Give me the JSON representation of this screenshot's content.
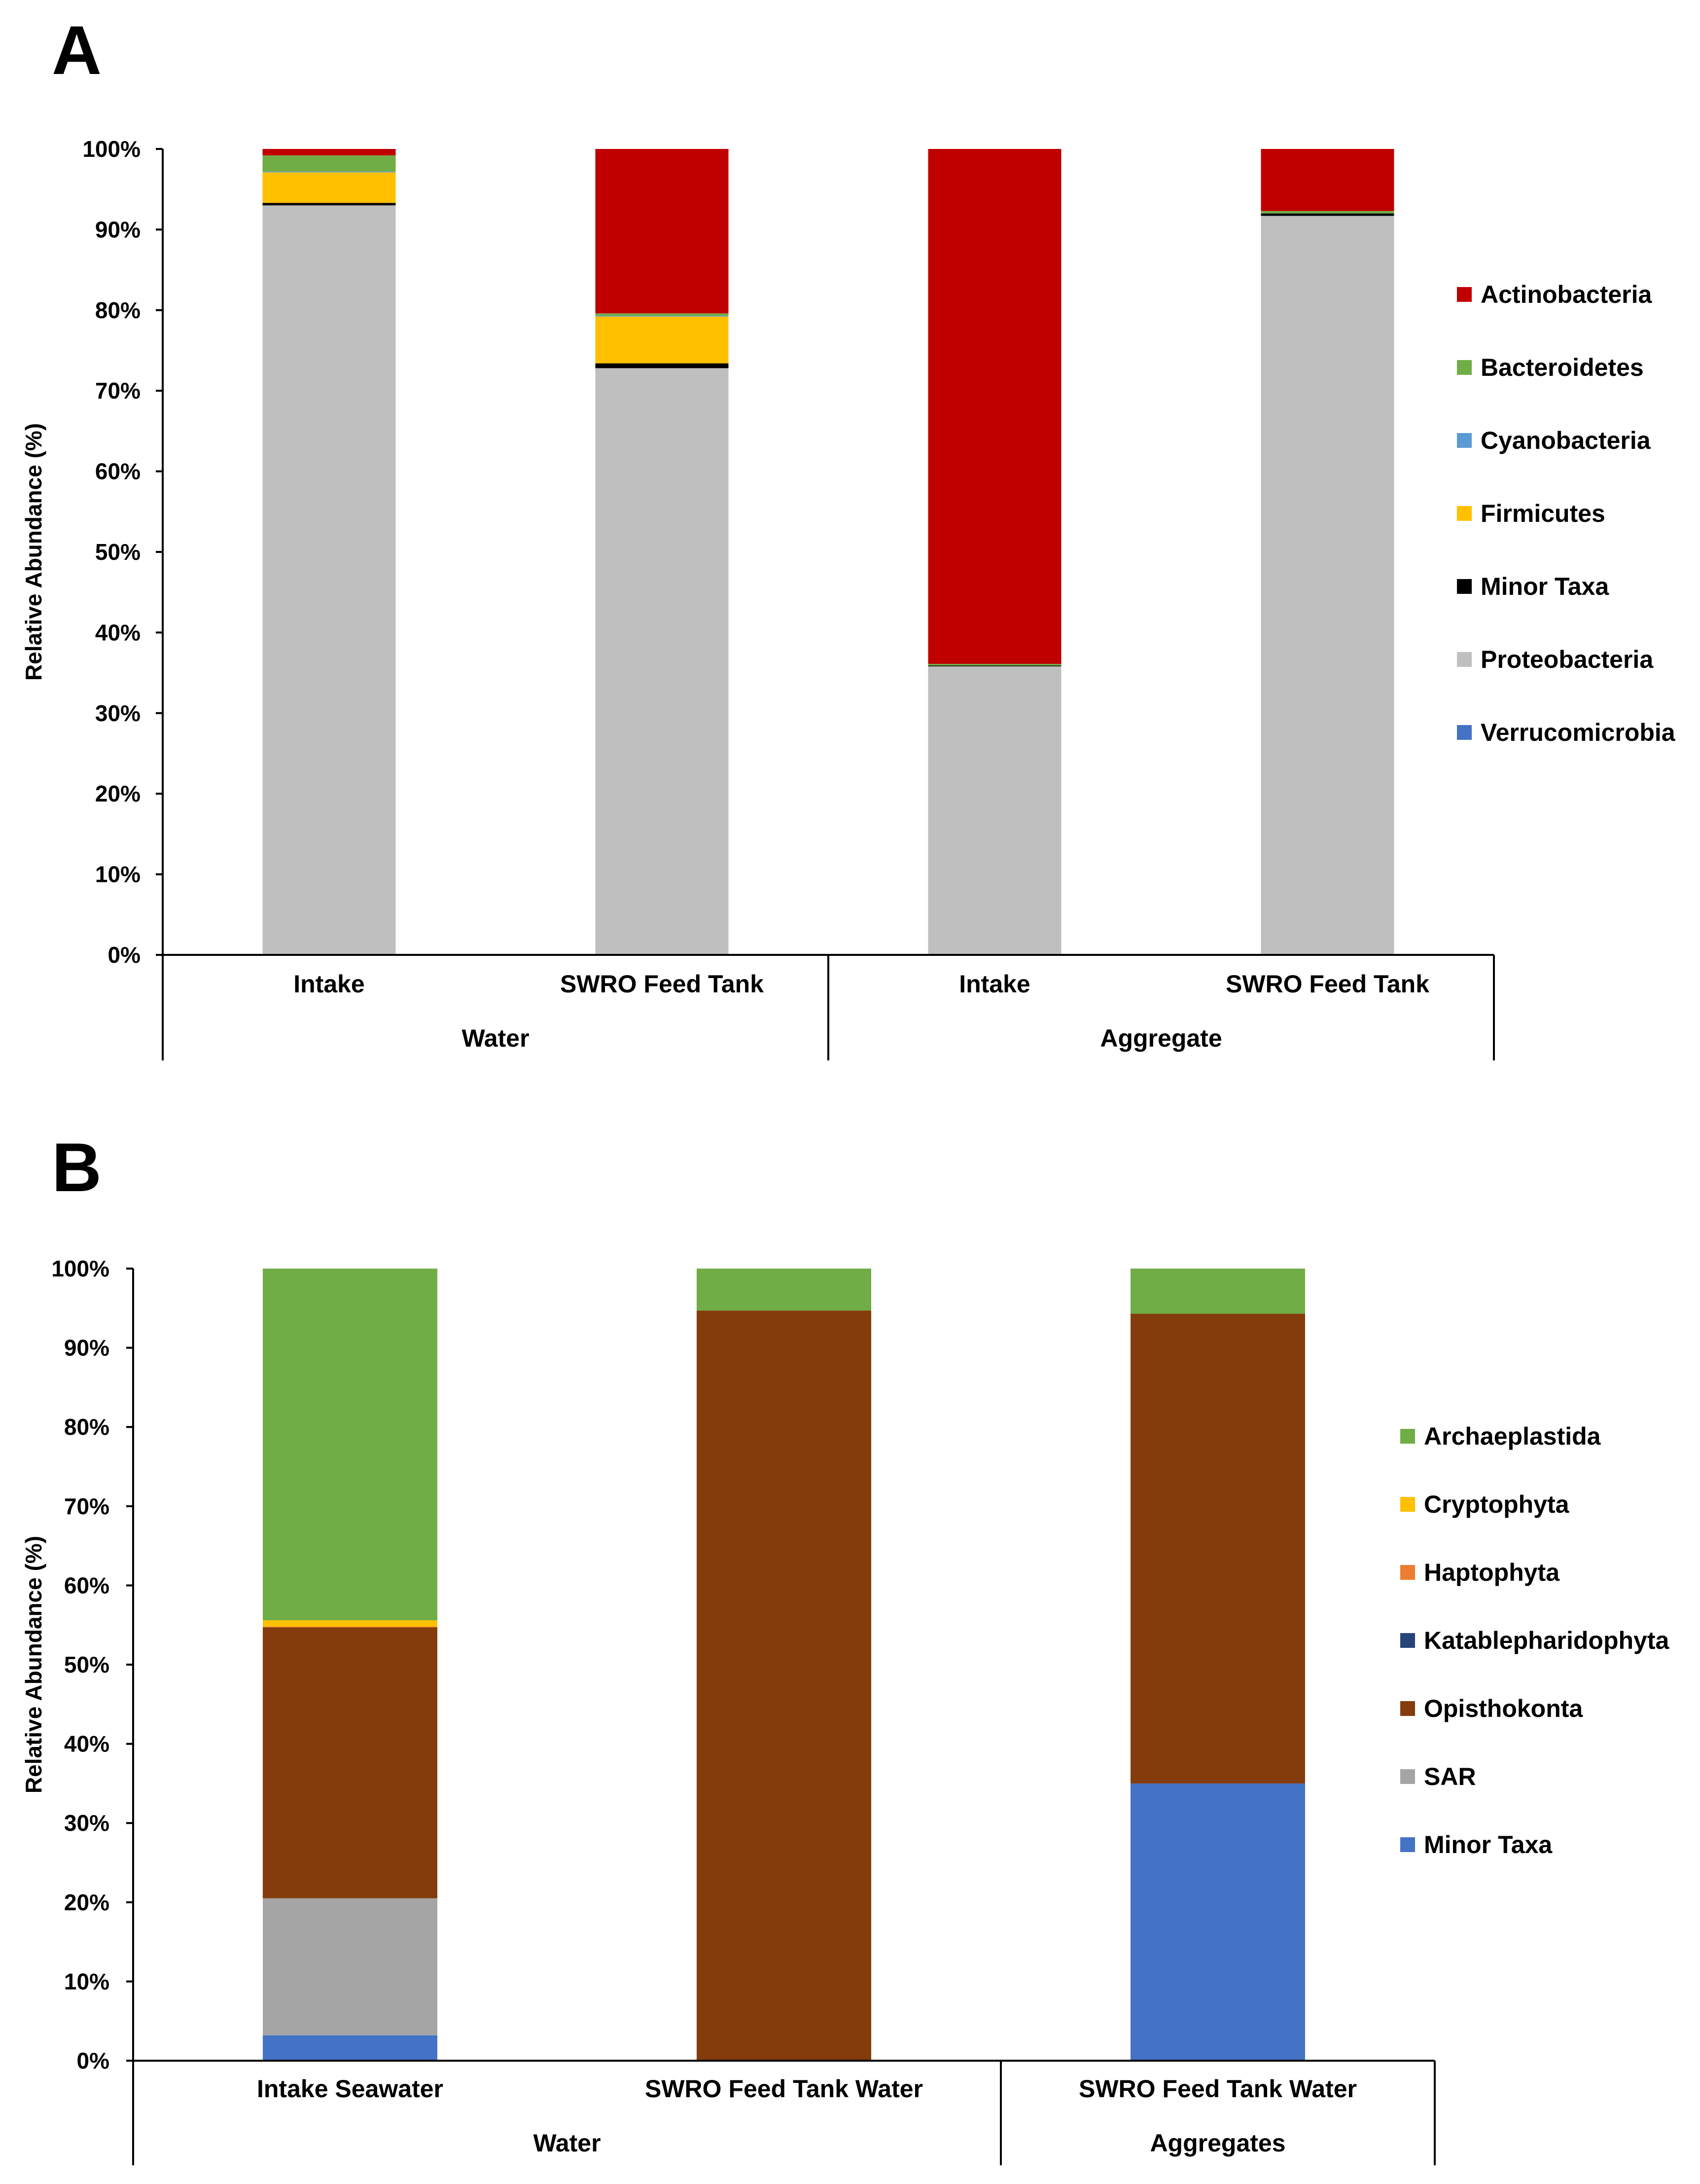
{
  "chart_data": [
    {
      "panel": "A",
      "type": "bar",
      "stacked": true,
      "normalized": true,
      "ylabel": "Relative Abundance (%)",
      "ylim": [
        0,
        100
      ],
      "yticks": [
        "0%",
        "10%",
        "20%",
        "30%",
        "40%",
        "50%",
        "60%",
        "70%",
        "80%",
        "90%",
        "100%"
      ],
      "categories": [
        "Intake",
        "SWRO Feed Tank",
        "Intake",
        "SWRO Feed Tank"
      ],
      "groups": [
        {
          "label": "Water",
          "span": [
            0,
            1
          ]
        },
        {
          "label": "Aggregate",
          "span": [
            2,
            3
          ]
        }
      ],
      "series": [
        {
          "name": "Verrucomicrobia",
          "color": "#4472C4",
          "values": [
            0,
            0,
            0,
            0
          ]
        },
        {
          "name": "Proteobacteria",
          "color": "#BFBFBF",
          "values": [
            93.0,
            72.8,
            35.8,
            91.7
          ]
        },
        {
          "name": "Minor Taxa",
          "color": "#000000",
          "values": [
            0.3,
            0.6,
            0.1,
            0.3
          ]
        },
        {
          "name": "Firmicutes",
          "color": "#FFC000",
          "values": [
            3.8,
            5.8,
            0,
            0
          ]
        },
        {
          "name": "Cyanobacteria",
          "color": "#5B9BD5",
          "values": [
            0.1,
            0.1,
            0,
            0
          ]
        },
        {
          "name": "Bacteroidetes",
          "color": "#70AD47",
          "values": [
            2.0,
            0.3,
            0.2,
            0.3
          ]
        },
        {
          "name": "Actinobacteria",
          "color": "#C00000",
          "values": [
            0.8,
            20.4,
            63.9,
            7.7
          ]
        }
      ],
      "legend": {
        "placement": "right",
        "entries": [
          {
            "name": "Actinobacteria",
            "color": "#C00000"
          },
          {
            "name": "Bacteroidetes",
            "color": "#70AD47"
          },
          {
            "name": "Cyanobacteria",
            "color": "#5B9BD5"
          },
          {
            "name": "Firmicutes",
            "color": "#FFC000"
          },
          {
            "name": "Minor Taxa",
            "color": "#000000"
          },
          {
            "name": "Proteobacteria",
            "color": "#BFBFBF"
          },
          {
            "name": "Verrucomicrobia",
            "color": "#4472C4"
          }
        ]
      },
      "grid": false
    },
    {
      "panel": "B",
      "type": "bar",
      "stacked": true,
      "normalized": true,
      "ylabel": "Relative Abundance (%)",
      "ylim": [
        0,
        100
      ],
      "yticks": [
        "0%",
        "10%",
        "20%",
        "30%",
        "40%",
        "50%",
        "60%",
        "70%",
        "80%",
        "90%",
        "100%"
      ],
      "categories": [
        "Intake Seawater",
        "SWRO Feed Tank Water",
        "SWRO Feed Tank Water"
      ],
      "groups": [
        {
          "label": "Water",
          "span": [
            0,
            1
          ]
        },
        {
          "label": "Aggregates",
          "span": [
            2,
            2
          ]
        }
      ],
      "series": [
        {
          "name": "Minor Taxa",
          "color": "#4472C4",
          "values": [
            3.2,
            0,
            35.0
          ]
        },
        {
          "name": "SAR",
          "color": "#A5A5A5",
          "values": [
            17.3,
            0,
            0
          ]
        },
        {
          "name": "Opisthokonta",
          "color": "#843C0C",
          "values": [
            34.2,
            94.7,
            59.3
          ]
        },
        {
          "name": "Katablepharidophyta",
          "color": "#264478",
          "values": [
            0,
            0,
            0
          ]
        },
        {
          "name": "Haptophyta",
          "color": "#ED7D31",
          "values": [
            0.1,
            0,
            0
          ]
        },
        {
          "name": "Cryptophyta",
          "color": "#FFC000",
          "values": [
            0.8,
            0,
            0
          ]
        },
        {
          "name": "Archaeplastida",
          "color": "#70AD47",
          "values": [
            44.4,
            5.3,
            5.7
          ]
        }
      ],
      "legend": {
        "placement": "right",
        "entries": [
          {
            "name": "Archaeplastida",
            "color": "#70AD47"
          },
          {
            "name": "Cryptophyta",
            "color": "#FFC000"
          },
          {
            "name": "Haptophyta",
            "color": "#ED7D31"
          },
          {
            "name": "Katablepharidophyta",
            "color": "#264478"
          },
          {
            "name": "Opisthokonta",
            "color": "#843C0C"
          },
          {
            "name": "SAR",
            "color": "#A5A5A5"
          },
          {
            "name": "Minor Taxa",
            "color": "#4472C4"
          }
        ]
      },
      "grid": false
    }
  ]
}
